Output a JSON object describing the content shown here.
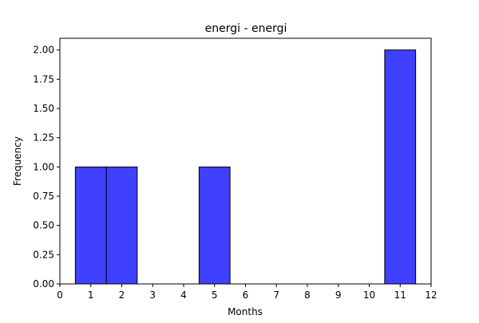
{
  "chart_data": {
    "type": "bar",
    "title": "energi - energi",
    "xlabel": "Months",
    "ylabel": "Frequency",
    "bins": [
      {
        "x0": 0.5,
        "x1": 1.5,
        "value": 1
      },
      {
        "x0": 1.5,
        "x1": 2.5,
        "value": 1
      },
      {
        "x0": 4.5,
        "x1": 5.5,
        "value": 1
      },
      {
        "x0": 10.5,
        "x1": 11.5,
        "value": 2
      }
    ],
    "xlim": [
      0,
      12
    ],
    "ylim": [
      0,
      2.1
    ],
    "xticks": [
      "0",
      "1",
      "2",
      "3",
      "4",
      "5",
      "6",
      "7",
      "8",
      "9",
      "10",
      "11",
      "12"
    ],
    "yticks": [
      "0.00",
      "0.25",
      "0.50",
      "0.75",
      "1.00",
      "1.25",
      "1.50",
      "1.75",
      "2.00"
    ],
    "grid": false,
    "legend": "none",
    "colors": {
      "bar_fill": "#4040ff",
      "bar_edge": "#000000"
    }
  }
}
